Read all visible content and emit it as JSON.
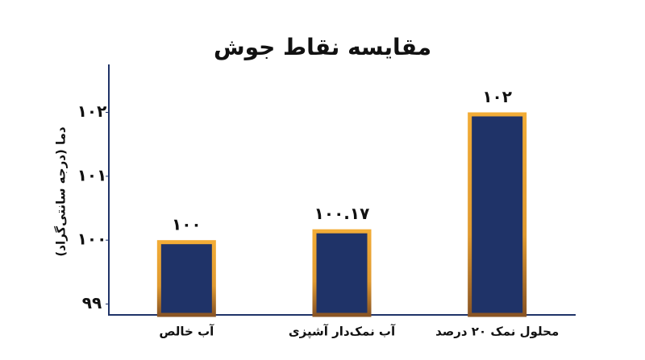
{
  "chart_data": {
    "type": "bar",
    "title": "مقایسه نقاط جوش",
    "y_label": "دما (درجه سانتی‌گراد)",
    "categories": [
      "آب خالص",
      "آب نمک‌دار آشپزی",
      "محلول نمک ۲۰ درصد"
    ],
    "values": [
      100,
      100.17,
      102
    ],
    "value_labels": [
      "۱۰۰",
      "۱۰۰.۱۷",
      "۱۰۲"
    ],
    "color": "#1f3368",
    "border_color": "#f2ac36",
    "ylim": [
      98.83,
      102.75
    ],
    "yticks": [
      {
        "value": 99,
        "label": "۹۹"
      },
      {
        "value": 100,
        "label": "۱۰۰"
      },
      {
        "value": 101,
        "label": "۱۰۱"
      },
      {
        "value": 102,
        "label": "۱۰۲"
      }
    ],
    "grid": false
  }
}
